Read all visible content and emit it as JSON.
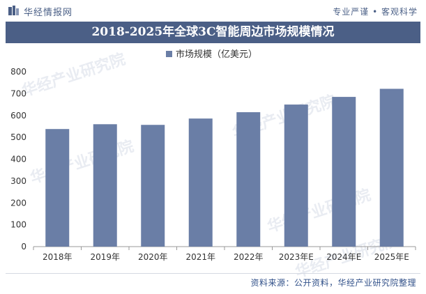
{
  "header": {
    "brand": "华经情报网",
    "tagline": "专业严谨 • 客观科学"
  },
  "watermark_text": "华经产业研究院",
  "colors": {
    "accent": "#4b5f86",
    "bar": "#6a7ea6"
  },
  "chart_data": {
    "type": "bar",
    "title": "2018-2025年全球3C智能周边市场规模情况",
    "categories": [
      "2018年",
      "2019年",
      "2020年",
      "2021年",
      "2022年",
      "2023年E",
      "2024年E",
      "2025年E"
    ],
    "series": [
      {
        "name": "市场规模（亿美元）",
        "values": [
          538,
          560,
          557,
          586,
          615,
          650,
          685,
          722
        ]
      }
    ],
    "ylim": [
      0,
      800
    ],
    "yticks": [
      0,
      100,
      200,
      300,
      400,
      500,
      600,
      700,
      800
    ],
    "grid": false,
    "legend": "top-center"
  },
  "source": "资料来源：公开资料，华经产业研究院整理"
}
